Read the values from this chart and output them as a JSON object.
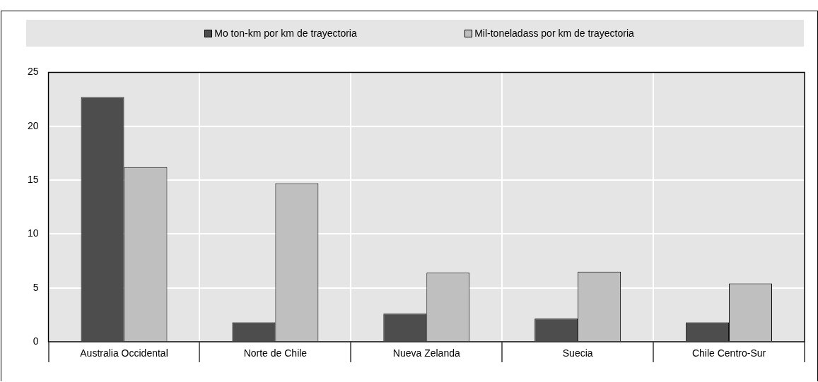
{
  "chart_data": {
    "type": "bar",
    "categories": [
      "Australia Occidental",
      "Norte de Chile",
      "Nueva Zelanda",
      "Suecia",
      "Chile Centro-Sur"
    ],
    "series": [
      {
        "name": "Mo ton-km por km de trayectoria",
        "color": "#4d4d4d",
        "values": [
          22.7,
          1.8,
          2.6,
          2.15,
          1.8
        ]
      },
      {
        "name": "Mil-toneladass por km de trayectoria",
        "color": "#bfbfbf",
        "values": [
          16.2,
          14.7,
          6.4,
          6.5,
          5.4
        ]
      }
    ],
    "ylim": [
      0,
      25
    ],
    "yticks": [
      0,
      5,
      10,
      15,
      20,
      25
    ],
    "grid": true,
    "legend": "top"
  }
}
